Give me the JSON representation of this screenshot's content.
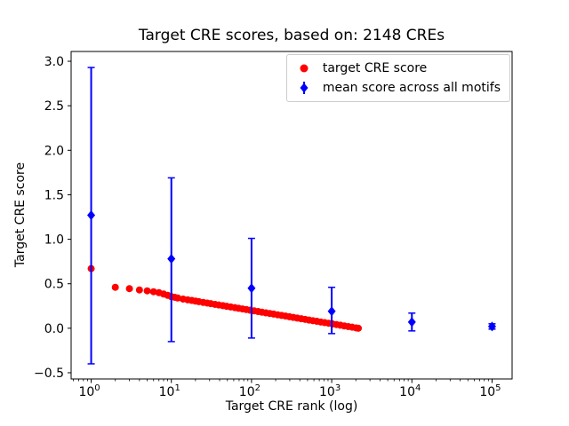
{
  "chart_data": {
    "type": "scatter",
    "title": "Target CRE scores, based on: 2148 CREs",
    "xlabel": "Target CRE rank (log)",
    "ylabel": "Target CRE score",
    "x_scale": "log10",
    "xlim_log10": [
      -0.25,
      5.25
    ],
    "ylim": [
      -0.57,
      3.11
    ],
    "xticks_exponents": [
      0,
      1,
      2,
      3,
      4,
      5
    ],
    "yticks": [
      -0.5,
      0.0,
      0.5,
      1.0,
      1.5,
      2.0,
      2.5,
      3.0
    ],
    "grid": false,
    "legend_position": "upper right",
    "series": [
      {
        "name": "target CRE score",
        "kind": "scatter",
        "marker": "circle",
        "color": "#ff0000",
        "points": [
          [
            1,
            0.67
          ],
          [
            2,
            0.46
          ],
          [
            3,
            0.445
          ],
          [
            4,
            0.43
          ],
          [
            5,
            0.42
          ],
          [
            6,
            0.41
          ],
          [
            7,
            0.4
          ],
          [
            8,
            0.385
          ],
          [
            9,
            0.37
          ],
          [
            10,
            0.355
          ],
          [
            11,
            0.348
          ],
          [
            12,
            0.34
          ],
          [
            14,
            0.328
          ],
          [
            16,
            0.319
          ],
          [
            18,
            0.312
          ],
          [
            20,
            0.305
          ],
          [
            22,
            0.299
          ],
          [
            25,
            0.29
          ],
          [
            28,
            0.283
          ],
          [
            31,
            0.276
          ],
          [
            35,
            0.268
          ],
          [
            39,
            0.261
          ],
          [
            44,
            0.254
          ],
          [
            49,
            0.246
          ],
          [
            55,
            0.239
          ],
          [
            62,
            0.231
          ],
          [
            69,
            0.224
          ],
          [
            77,
            0.217
          ],
          [
            86,
            0.21
          ],
          [
            96,
            0.203
          ],
          [
            108,
            0.195
          ],
          [
            121,
            0.188
          ],
          [
            135,
            0.18
          ],
          [
            151,
            0.173
          ],
          [
            169,
            0.166
          ],
          [
            189,
            0.159
          ],
          [
            212,
            0.151
          ],
          [
            237,
            0.144
          ],
          [
            265,
            0.137
          ],
          [
            297,
            0.129
          ],
          [
            332,
            0.122
          ],
          [
            372,
            0.114
          ],
          [
            416,
            0.107
          ],
          [
            466,
            0.1
          ],
          [
            521,
            0.092
          ],
          [
            583,
            0.085
          ],
          [
            653,
            0.078
          ],
          [
            731,
            0.07
          ],
          [
            818,
            0.063
          ],
          [
            916,
            0.056
          ],
          [
            1025,
            0.048
          ],
          [
            1147,
            0.041
          ],
          [
            1284,
            0.034
          ],
          [
            1437,
            0.026
          ],
          [
            1608,
            0.019
          ],
          [
            1800,
            0.012
          ],
          [
            2014,
            0.004
          ],
          [
            2148,
            0.0
          ]
        ]
      },
      {
        "name": "mean score across all motifs",
        "kind": "errorbar",
        "marker": "diamond",
        "color": "#0000ff",
        "points": [
          {
            "x": 1,
            "y": 1.27,
            "lo": -0.4,
            "hi": 2.93
          },
          {
            "x": 10,
            "y": 0.78,
            "lo": -0.15,
            "hi": 1.69
          },
          {
            "x": 100,
            "y": 0.45,
            "lo": -0.11,
            "hi": 1.01
          },
          {
            "x": 1000,
            "y": 0.19,
            "lo": -0.06,
            "hi": 0.46
          },
          {
            "x": 10000,
            "y": 0.07,
            "lo": -0.03,
            "hi": 0.17
          },
          {
            "x": 100000,
            "y": 0.02,
            "lo": -0.01,
            "hi": 0.05
          }
        ]
      }
    ]
  }
}
